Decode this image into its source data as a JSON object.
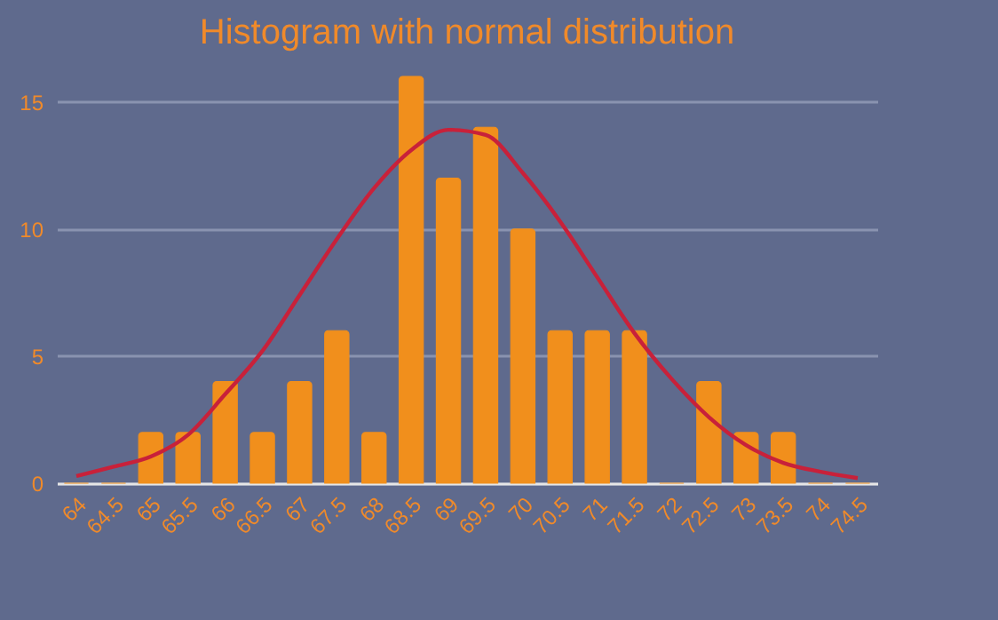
{
  "chart_data": {
    "type": "bar",
    "title": "Histogram with normal distribution",
    "categories": [
      "64",
      "64.5",
      "65",
      "65.5",
      "66",
      "66.5",
      "67",
      "67.5",
      "68",
      "68.5",
      "69",
      "69.5",
      "70",
      "70.5",
      "71",
      "71.5",
      "72",
      "72.5",
      "73",
      "73.5",
      "74",
      "74.5"
    ],
    "series": [
      {
        "color": "#f18f1c",
        "values": [
          0,
          0,
          2,
          2,
          4,
          2,
          4,
          6,
          2,
          16,
          12,
          14,
          10,
          6,
          6,
          6,
          0,
          4,
          2,
          2,
          0,
          0
        ]
      },
      {
        "type": "line",
        "color": "#c8213a",
        "values": [
          0.28,
          0.65,
          1.05,
          1.9,
          3.5,
          5.2,
          7.4,
          9.6,
          11.6,
          13.1,
          13.9,
          13.7,
          12.2,
          10.3,
          8.1,
          5.9,
          4.1,
          2.6,
          1.5,
          0.8,
          0.45,
          0.2
        ]
      }
    ],
    "ylim": [
      0,
      16
    ],
    "yticks": [
      0,
      5,
      10,
      15
    ],
    "grid": "y"
  }
}
